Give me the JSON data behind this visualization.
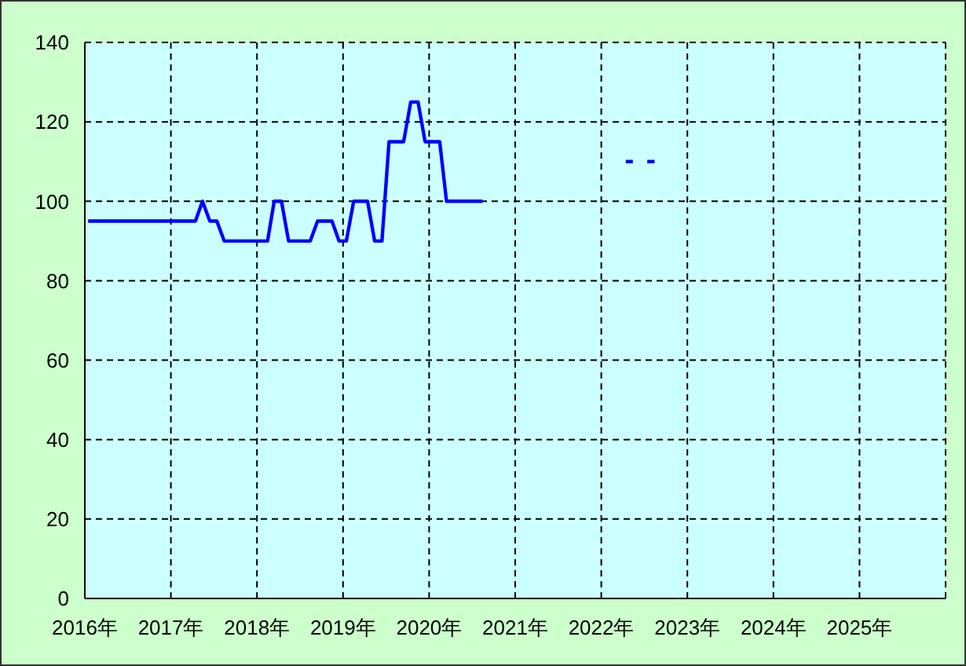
{
  "chart_data": {
    "type": "line",
    "x": [
      "2016-01-15",
      "2016-02-15",
      "2016-03-15",
      "2016-04-15",
      "2016-05-15",
      "2016-06-15",
      "2016-07-15",
      "2016-08-15",
      "2016-09-15",
      "2016-10-15",
      "2016-11-15",
      "2016-12-15",
      "2017-01-15",
      "2017-02-15",
      "2017-03-15",
      "2017-04-15",
      "2017-05-15",
      "2017-06-15",
      "2017-07-15",
      "2017-08-15",
      "2017-09-15",
      "2017-10-15",
      "2017-11-15",
      "2017-12-15",
      "2018-01-15",
      "2018-02-15",
      "2018-03-15",
      "2018-04-15",
      "2018-05-15",
      "2018-06-15",
      "2018-07-15",
      "2018-08-15",
      "2018-09-15",
      "2018-10-15",
      "2018-11-15",
      "2018-12-15",
      "2019-01-15",
      "2019-02-15",
      "2019-03-15",
      "2019-04-15",
      "2019-05-15",
      "2019-06-15",
      "2019-07-15",
      "2019-08-15",
      "2019-09-15",
      "2019-10-15",
      "2019-11-15",
      "2019-12-15",
      "2020-01-15",
      "2020-02-15",
      "2020-03-15",
      "2020-04-15",
      "2020-05-15",
      "2020-06-15",
      "2020-07-15",
      "2020-08-15",
      "2020-09-15",
      "2020-10-15",
      "2020-11-15",
      "2020-12-15",
      "2021-01-15",
      "2021-02-15",
      "2021-03-15",
      "2021-04-15",
      "2021-05-15",
      "2021-06-15",
      "2021-07-15",
      "2021-08-15",
      "2021-09-15",
      "2021-10-15",
      "2021-11-15",
      "2021-12-15",
      "2022-01-15",
      "2022-02-15",
      "2022-03-15",
      "2022-04-15",
      "2022-05-15",
      "2022-06-15",
      "2022-07-15",
      "2022-08-15"
    ],
    "series": [
      {
        "color": "#0000ff",
        "values": [
          95,
          95,
          95,
          95,
          95,
          95,
          95,
          95,
          95,
          95,
          95,
          95,
          95,
          95,
          95,
          95,
          100,
          95,
          95,
          90,
          90,
          90,
          90,
          90,
          90,
          90,
          100,
          100,
          90,
          90,
          90,
          90,
          95,
          95,
          95,
          90,
          90,
          100,
          100,
          100,
          90,
          90,
          115,
          115,
          115,
          125,
          125,
          115,
          115,
          115,
          100,
          100,
          100,
          100,
          100,
          100,
          null,
          null,
          null,
          null,
          null,
          null,
          null,
          null,
          null,
          null,
          null,
          null,
          null,
          null,
          null,
          null,
          null,
          null,
          null,
          110,
          110,
          null,
          110,
          110
        ]
      }
    ],
    "xlim": [
      "2016",
      "2026"
    ],
    "xticks": [
      {
        "value": "2016",
        "label": "2016年"
      },
      {
        "value": "2017",
        "label": "2017年"
      },
      {
        "value": "2018",
        "label": "2018年"
      },
      {
        "value": "2019",
        "label": "2019年"
      },
      {
        "value": "2020",
        "label": "2020年"
      },
      {
        "value": "2021",
        "label": "2021年"
      },
      {
        "value": "2022",
        "label": "2022年"
      },
      {
        "value": "2023",
        "label": "2023年"
      },
      {
        "value": "2024",
        "label": "2024年"
      },
      {
        "value": "2025",
        "label": "2025年"
      }
    ],
    "ylim": [
      0,
      140
    ],
    "yticks": [
      0,
      20,
      40,
      60,
      80,
      100,
      120,
      140
    ],
    "grid": true
  }
}
